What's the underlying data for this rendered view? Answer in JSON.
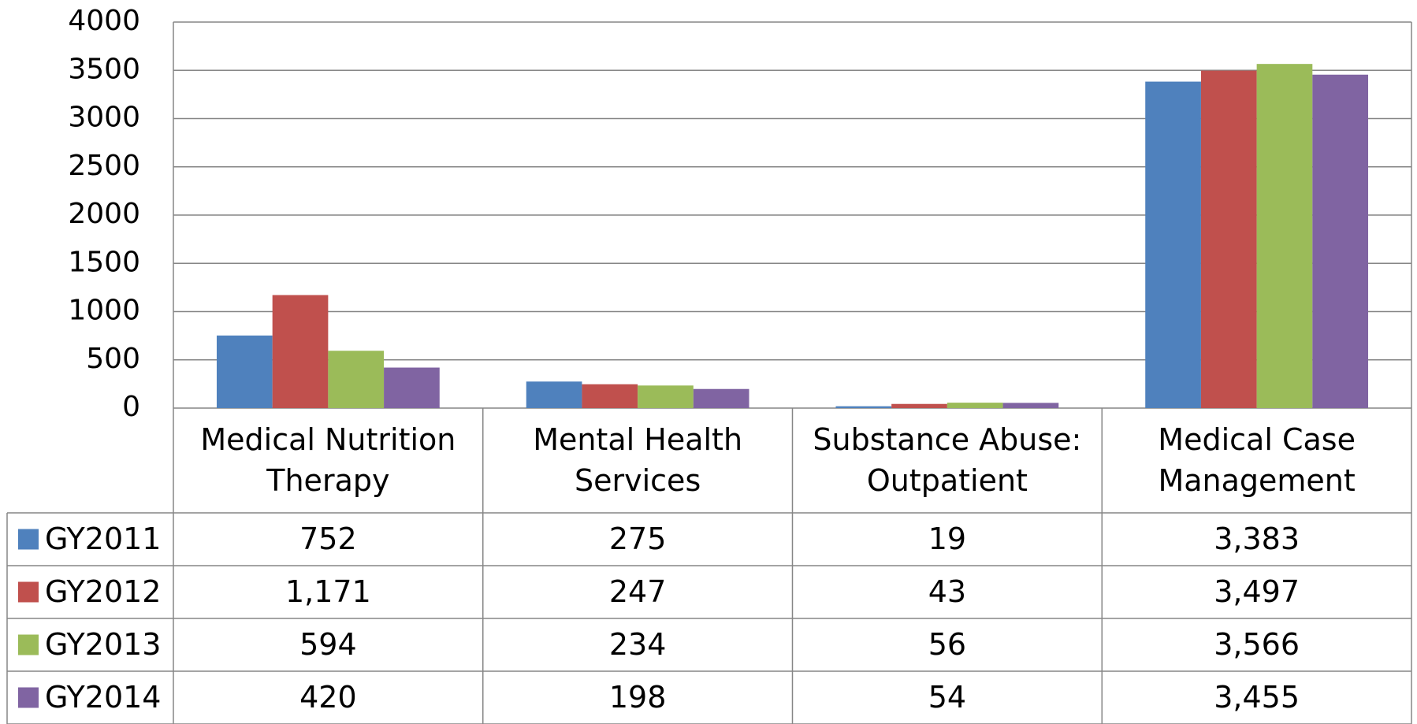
{
  "chart_data": {
    "type": "bar",
    "categories": [
      "Medical Nutrition Therapy",
      "Mental Health Services",
      "Substance Abuse: Outpatient",
      "Medical Case Management"
    ],
    "series": [
      {
        "name": "GY2011",
        "color": "#4f81bd",
        "values": [
          752,
          275,
          19,
          3383
        ],
        "value_labels": [
          "752",
          "275",
          "19",
          "3,383"
        ]
      },
      {
        "name": "GY2012",
        "color": "#c0504d",
        "values": [
          1171,
          247,
          43,
          3497
        ],
        "value_labels": [
          "1,171",
          "247",
          "43",
          "3,497"
        ]
      },
      {
        "name": "GY2013",
        "color": "#9bbb59",
        "values": [
          594,
          234,
          56,
          3566
        ],
        "value_labels": [
          "594",
          "234",
          "56",
          "3,566"
        ]
      },
      {
        "name": "GY2014",
        "color": "#8064a2",
        "values": [
          420,
          198,
          54,
          3455
        ],
        "value_labels": [
          "420",
          "198",
          "54",
          "3,455"
        ]
      }
    ],
    "ylim": [
      0,
      4000
    ],
    "yticks": [
      0,
      500,
      1000,
      1500,
      2000,
      2500,
      3000,
      3500,
      4000
    ],
    "grid": true
  }
}
